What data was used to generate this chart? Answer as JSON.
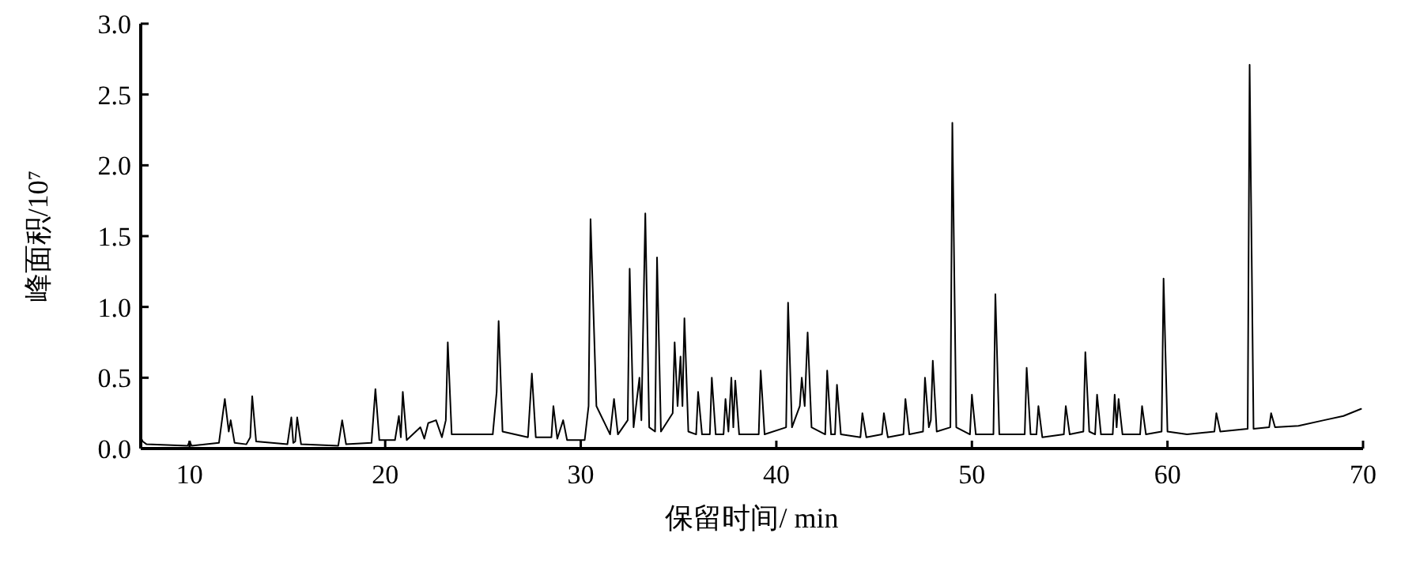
{
  "chart_data": {
    "type": "line",
    "xlabel": "保留时间/ min",
    "ylabel": "峰面积/10⁷",
    "xlim": [
      7.5,
      70
    ],
    "xticks": [
      10,
      20,
      30,
      40,
      50,
      60,
      70
    ],
    "ylim": [
      0,
      3
    ],
    "yticks": [
      {
        "value": 0,
        "label": "0.0"
      },
      {
        "value": 0.5,
        "label": "0.5"
      },
      {
        "value": 1,
        "label": "1.0"
      },
      {
        "value": 1.5,
        "label": "1.5"
      },
      {
        "value": 2,
        "label": "2.0"
      },
      {
        "value": 2.5,
        "label": "2.5"
      },
      {
        "value": 3,
        "label": "3.0"
      }
    ],
    "series": [
      {
        "color": "#000000",
        "x": [
          7.5,
          7.6,
          7.8,
          9.9,
          10.0,
          10.1,
          11.5,
          11.8,
          12.0,
          12.1,
          12.3,
          12.9,
          13.1,
          13.2,
          13.4,
          15.0,
          15.2,
          15.3,
          15.4,
          15.5,
          15.7,
          17.6,
          17.8,
          18.0,
          19.3,
          19.5,
          19.7,
          20.5,
          20.7,
          20.8,
          20.9,
          21.1,
          21.8,
          22.0,
          22.2,
          22.6,
          22.9,
          23.1,
          23.2,
          23.4,
          25.5,
          25.7,
          25.8,
          26.0,
          27.3,
          27.5,
          27.7,
          28.5,
          28.6,
          28.8,
          29.1,
          29.3,
          30.2,
          30.4,
          30.5,
          30.8,
          31.5,
          31.7,
          31.9,
          32.4,
          32.5,
          32.7,
          33.0,
          33.1,
          33.3,
          33.5,
          33.8,
          33.9,
          34.1,
          34.7,
          34.8,
          34.95,
          35.1,
          35.2,
          35.3,
          35.5,
          35.9,
          36.0,
          36.2,
          36.6,
          36.7,
          36.9,
          37.3,
          37.4,
          37.55,
          37.7,
          37.8,
          37.9,
          38.1,
          39.1,
          39.2,
          39.4,
          40.5,
          40.6,
          40.8,
          41.2,
          41.3,
          41.45,
          41.6,
          41.8,
          42.5,
          42.6,
          42.8,
          43.0,
          43.1,
          43.3,
          44.3,
          44.4,
          44.6,
          45.4,
          45.5,
          45.7,
          46.5,
          46.6,
          46.8,
          47.5,
          47.6,
          47.8,
          47.9,
          48.0,
          48.2,
          48.9,
          49.0,
          49.2,
          49.9,
          50.0,
          50.2,
          51.1,
          51.2,
          51.4,
          52.7,
          52.8,
          53.0,
          53.3,
          53.4,
          53.6,
          54.7,
          54.8,
          55.0,
          55.7,
          55.8,
          56.0,
          56.3,
          56.4,
          56.6,
          57.2,
          57.3,
          57.4,
          57.5,
          57.7,
          58.6,
          58.7,
          58.9,
          59.7,
          59.8,
          60.0,
          61.0,
          62.4,
          62.5,
          62.7,
          64.1,
          64.2,
          64.4,
          65.2,
          65.3,
          65.5,
          66.7,
          68.0,
          69.0,
          69.9
        ],
        "values": [
          0.08,
          0.05,
          0.03,
          0.02,
          0.05,
          0.02,
          0.04,
          0.35,
          0.12,
          0.2,
          0.04,
          0.03,
          0.08,
          0.37,
          0.05,
          0.03,
          0.22,
          0.04,
          0.05,
          0.22,
          0.03,
          0.02,
          0.2,
          0.03,
          0.04,
          0.42,
          0.06,
          0.06,
          0.23,
          0.08,
          0.4,
          0.06,
          0.15,
          0.07,
          0.18,
          0.2,
          0.08,
          0.2,
          0.75,
          0.1,
          0.1,
          0.4,
          0.9,
          0.12,
          0.08,
          0.53,
          0.08,
          0.08,
          0.3,
          0.07,
          0.2,
          0.06,
          0.06,
          0.3,
          1.62,
          0.3,
          0.1,
          0.35,
          0.1,
          0.2,
          1.27,
          0.15,
          0.5,
          0.2,
          1.66,
          0.15,
          0.12,
          1.35,
          0.12,
          0.25,
          0.75,
          0.3,
          0.65,
          0.3,
          0.92,
          0.12,
          0.1,
          0.4,
          0.1,
          0.1,
          0.5,
          0.1,
          0.1,
          0.35,
          0.12,
          0.5,
          0.15,
          0.48,
          0.1,
          0.1,
          0.55,
          0.1,
          0.15,
          1.03,
          0.15,
          0.3,
          0.5,
          0.3,
          0.82,
          0.15,
          0.1,
          0.55,
          0.1,
          0.1,
          0.45,
          0.1,
          0.08,
          0.25,
          0.08,
          0.1,
          0.25,
          0.08,
          0.1,
          0.35,
          0.1,
          0.12,
          0.5,
          0.15,
          0.2,
          0.62,
          0.12,
          0.15,
          2.3,
          0.15,
          0.1,
          0.38,
          0.1,
          0.1,
          1.09,
          0.1,
          0.1,
          0.57,
          0.1,
          0.1,
          0.3,
          0.08,
          0.1,
          0.3,
          0.1,
          0.12,
          0.68,
          0.12,
          0.1,
          0.38,
          0.1,
          0.1,
          0.38,
          0.15,
          0.35,
          0.1,
          0.1,
          0.3,
          0.1,
          0.12,
          1.2,
          0.12,
          0.1,
          0.12,
          0.25,
          0.12,
          0.14,
          2.71,
          0.14,
          0.15,
          0.25,
          0.15,
          0.16,
          0.2,
          0.23,
          0.28
        ]
      }
    ]
  }
}
